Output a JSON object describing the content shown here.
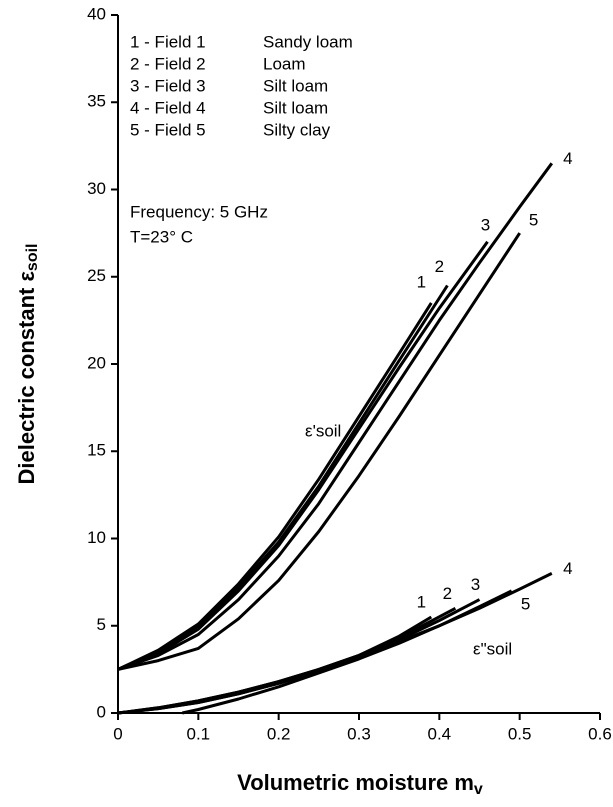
{
  "chart_data": {
    "type": "line",
    "xlabel": "Volumetric moisture m",
    "xlabel_sub": "v",
    "ylabel": "Dielectric constant ε",
    "ylabel_sub": "soil",
    "xlim": [
      0,
      0.6
    ],
    "xticks": [
      0,
      0.1,
      0.2,
      0.3,
      0.4,
      0.5,
      0.6
    ],
    "ylim": [
      0,
      40
    ],
    "yticks": [
      0,
      5,
      10,
      15,
      20,
      25,
      30,
      35,
      40
    ],
    "legend": [
      {
        "label": "1 - Field 1",
        "soil": "Sandy loam"
      },
      {
        "label": "2 - Field 2",
        "soil": "Loam"
      },
      {
        "label": "3 - Field 3",
        "soil": "Silt loam"
      },
      {
        "label": "4 - Field 4",
        "soil": "Silt loam"
      },
      {
        "label": "5 - Field 5",
        "soil": "Silty clay"
      }
    ],
    "annotations": [
      "Frequency: 5 GHz",
      "T=23° C",
      "ε'soil",
      "ε\"soil"
    ],
    "series": [
      {
        "name": "1",
        "color": "#000000",
        "x": [
          0,
          0.05,
          0.1,
          0.15,
          0.2,
          0.25,
          0.3,
          0.35,
          0.39
        ],
        "values": [
          2.5,
          3.6,
          5.1,
          7.4,
          10.1,
          13.4,
          17,
          20.6,
          23.5
        ]
      },
      {
        "name": "2",
        "color": "#000000",
        "x": [
          0,
          0.05,
          0.1,
          0.15,
          0.2,
          0.25,
          0.3,
          0.35,
          0.41
        ],
        "values": [
          2.5,
          3.5,
          5,
          7.2,
          9.8,
          13,
          16.6,
          20.2,
          24.5
        ]
      },
      {
        "name": "3",
        "color": "#000000",
        "x": [
          0,
          0.05,
          0.1,
          0.15,
          0.2,
          0.25,
          0.3,
          0.35,
          0.4,
          0.46
        ],
        "values": [
          2.5,
          3.4,
          4.8,
          7,
          9.6,
          12.8,
          16.3,
          19.8,
          23.2,
          27
        ]
      },
      {
        "name": "4",
        "color": "#000000",
        "x": [
          0,
          0.05,
          0.1,
          0.15,
          0.2,
          0.25,
          0.3,
          0.35,
          0.4,
          0.45,
          0.5,
          0.54
        ],
        "values": [
          2.5,
          3.3,
          4.5,
          6.5,
          9,
          12,
          15.5,
          19,
          22.5,
          25.8,
          29,
          31.5
        ]
      },
      {
        "name": "5",
        "color": "#000000",
        "x": [
          0,
          0.05,
          0.1,
          0.15,
          0.2,
          0.25,
          0.3,
          0.35,
          0.4,
          0.45,
          0.5
        ],
        "values": [
          2.5,
          3,
          3.7,
          5.4,
          7.6,
          10.4,
          13.6,
          17,
          20.5,
          24,
          27.5
        ]
      },
      {
        "name": "1",
        "color": "#000000",
        "x": [
          0,
          0.05,
          0.1,
          0.15,
          0.2,
          0.25,
          0.3,
          0.35,
          0.39
        ],
        "values": [
          0,
          0.3,
          0.7,
          1.2,
          1.8,
          2.5,
          3.3,
          4.4,
          5.5
        ]
      },
      {
        "name": "2",
        "color": "#000000",
        "x": [
          0,
          0.05,
          0.1,
          0.15,
          0.2,
          0.25,
          0.3,
          0.35,
          0.42
        ],
        "values": [
          0,
          0.3,
          0.7,
          1.2,
          1.8,
          2.5,
          3.3,
          4.3,
          6
        ]
      },
      {
        "name": "3",
        "color": "#000000",
        "x": [
          0,
          0.05,
          0.1,
          0.15,
          0.2,
          0.25,
          0.3,
          0.35,
          0.4,
          0.45
        ],
        "values": [
          0,
          0.25,
          0.6,
          1.1,
          1.7,
          2.4,
          3.2,
          4.2,
          5.3,
          6.5
        ]
      },
      {
        "name": "4",
        "color": "#000000",
        "x": [
          0,
          0.05,
          0.1,
          0.15,
          0.2,
          0.25,
          0.3,
          0.35,
          0.4,
          0.45,
          0.5,
          0.54
        ],
        "values": [
          0,
          0.25,
          0.6,
          1.1,
          1.7,
          2.4,
          3.2,
          4.1,
          5,
          6,
          7.1,
          8
        ]
      },
      {
        "name": "5",
        "color": "#000000",
        "x": [
          0.08,
          0.1,
          0.15,
          0.2,
          0.25,
          0.3,
          0.35,
          0.4,
          0.45,
          0.49
        ],
        "values": [
          0,
          0.2,
          0.8,
          1.5,
          2.3,
          3.1,
          4,
          5,
          6.1,
          7
        ]
      }
    ]
  }
}
